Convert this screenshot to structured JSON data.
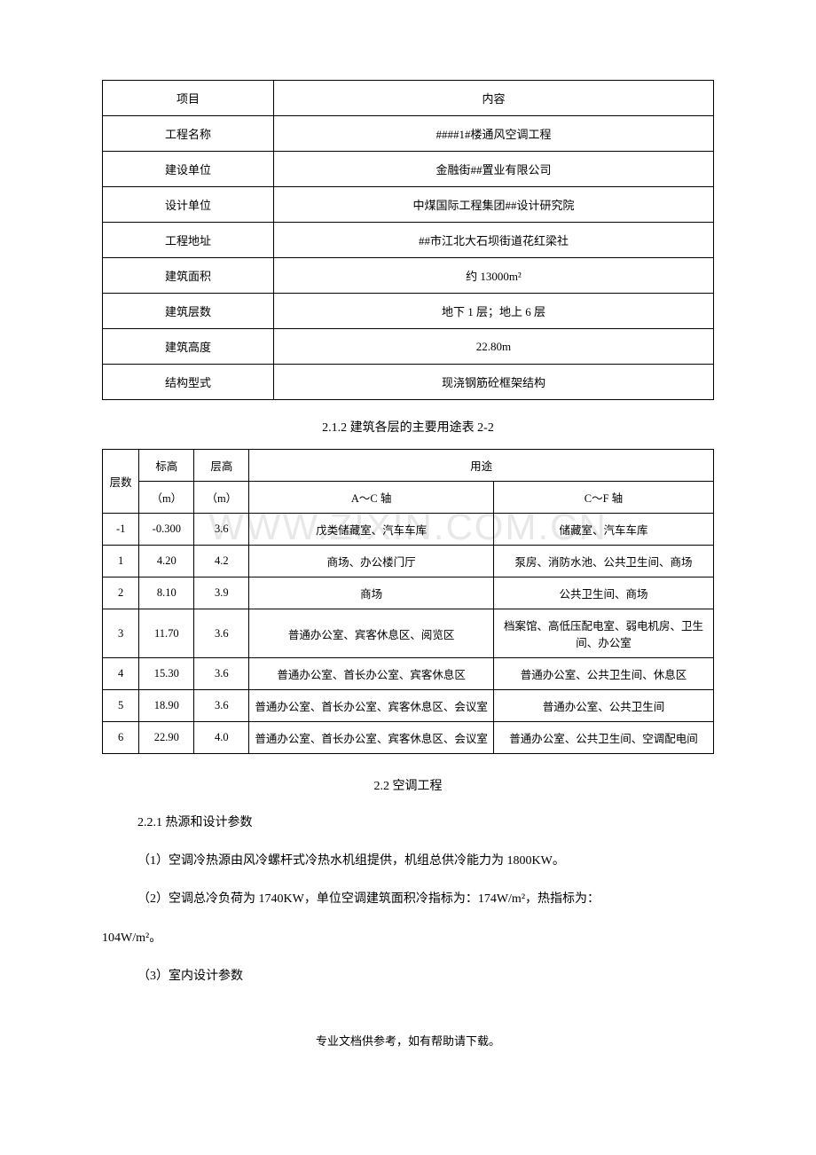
{
  "watermark": "WWW.ZIXIN.COM.CN",
  "table1": {
    "rows": [
      [
        "项目",
        "内容"
      ],
      [
        "工程名称",
        "####1#楼通风空调工程"
      ],
      [
        "建设单位",
        "金融街##置业有限公司"
      ],
      [
        "设计单位",
        "中煤国际工程集团##设计研究院"
      ],
      [
        "工程地址",
        "##市江北大石坝街道花红梁社"
      ],
      [
        "建筑面积",
        "约 13000m²"
      ],
      [
        "建筑层数",
        "地下 1 层；地上 6 层"
      ],
      [
        "建筑高度",
        "22.80m"
      ],
      [
        "结构型式",
        "现浇钢筋砼框架结构"
      ]
    ]
  },
  "caption1": "2.1.2 建筑各层的主要用途表 2-2",
  "table2": {
    "header1": {
      "floor": "层数",
      "elev": "标高",
      "height": "层高",
      "use": "用途"
    },
    "header2": {
      "elev_unit": "（m）",
      "height_unit": "（m）",
      "ac": "A～C 轴",
      "cf": "C～F 轴"
    },
    "rows": [
      [
        "-1",
        "-0.300",
        "3.6",
        "戊类储藏室、汽车车库",
        "储藏室、汽车车库"
      ],
      [
        "1",
        "4.20",
        "4.2",
        "商场、办公楼门厅",
        "泵房、消防水池、公共卫生间、商场"
      ],
      [
        "2",
        "8.10",
        "3.9",
        "商场",
        "公共卫生间、商场"
      ],
      [
        "3",
        "11.70",
        "3.6",
        "普通办公室、宾客休息区、阅览区",
        "档案馆、高低压配电室、弱电机房、卫生间、办公室"
      ],
      [
        "4",
        "15.30",
        "3.6",
        "普通办公室、首长办公室、宾客休息区",
        "普通办公室、公共卫生间、休息区"
      ],
      [
        "5",
        "18.90",
        "3.6",
        "普通办公室、首长办公室、宾客休息区、会议室",
        "普通办公室、公共卫生间"
      ],
      [
        "6",
        "22.90",
        "4.0",
        "普通办公室、首长办公室、宾客休息区、会议室",
        "普通办公室、公共卫生间、空调配电间"
      ]
    ]
  },
  "section22": "2.2 空调工程",
  "sub221": "2.2.1 热源和设计参数",
  "para1": "（1）空调冷热源由风冷螺杆式冷热水机组提供，机组总供冷能力为 1800KW。",
  "para2": "（2）空调总冷负荷为 1740KW，单位空调建筑面积冷指标为：174W/m²，热指标为：",
  "para2b": "104W/m²。",
  "para3": "（3）室内设计参数",
  "footer": "专业文档供参考，如有帮助请下载。"
}
